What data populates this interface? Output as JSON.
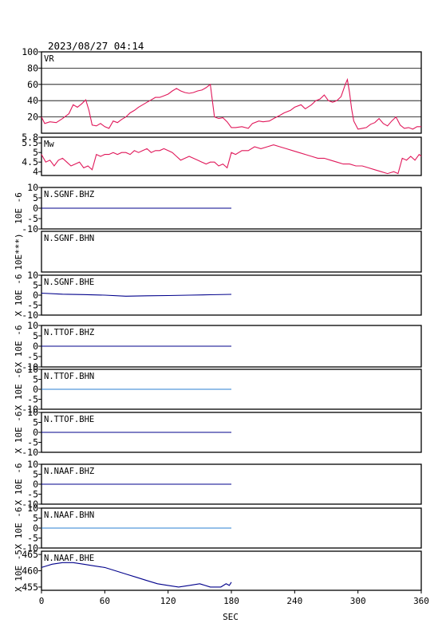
{
  "header": {
    "timestamp": "2023/08/27 04:14"
  },
  "chart_data": {
    "type": "line",
    "xlabel": "SEC",
    "xlim": [
      0,
      360
    ],
    "xticks": [
      0,
      60,
      120,
      180,
      240,
      300,
      360
    ],
    "panels": [
      {
        "id": "vr",
        "label": "VR",
        "ylabel": "",
        "ylim": [
          0,
          100
        ],
        "yticks": [
          20,
          40,
          60,
          80,
          100
        ],
        "ygrid": true,
        "color": "#e0185a",
        "series": [
          {
            "x": [
              0,
              3,
              8,
              14,
              20,
              26,
              30,
              34,
              38,
              42,
              45,
              48,
              52,
              56,
              60,
              64,
              68,
              72,
              76,
              80,
              84,
              88,
              92,
              96,
              100,
              104,
              108,
              112,
              116,
              120,
              124,
              128,
              132,
              136,
              140,
              144,
              148,
              152,
              156,
              160,
              164,
              168,
              172,
              176,
              180,
              184,
              190,
              196,
              200,
              206,
              210,
              216,
              220,
              226,
              230,
              236,
              240,
              246,
              250,
              256,
              260,
              264,
              268,
              272,
              276,
              280,
              284,
              288,
              290,
              292,
              294,
              296,
              300,
              304,
              308,
              312,
              316,
              320,
              324,
              328,
              332,
              336,
              340,
              344,
              348,
              352,
              356,
              360
            ],
            "y": [
              20,
              12,
              14,
              13,
              18,
              24,
              35,
              32,
              36,
              41,
              28,
              10,
              9,
              12,
              8,
              6,
              15,
              13,
              17,
              20,
              25,
              28,
              32,
              35,
              38,
              41,
              44,
              44,
              46,
              48,
              52,
              55,
              52,
              50,
              49,
              50,
              52,
              53,
              56,
              60,
              20,
              18,
              19,
              14,
              7,
              7,
              8,
              6,
              12,
              15,
              14,
              15,
              18,
              22,
              25,
              28,
              32,
              35,
              30,
              35,
              40,
              42,
              47,
              40,
              38,
              40,
              45,
              60,
              66,
              50,
              30,
              15,
              5,
              6,
              7,
              11,
              13,
              18,
              12,
              9,
              15,
              20,
              10,
              6,
              7,
              5,
              8,
              8
            ]
          }
        ]
      },
      {
        "id": "mw",
        "label": "Mw",
        "ylabel": "",
        "ylim": [
          3.8,
          5.8
        ],
        "yticks": [
          4.0,
          4.5,
          5.0,
          5.5,
          5.8
        ],
        "ygrid": false,
        "color": "#e0185a",
        "series": [
          {
            "x": [
              0,
              4,
              8,
              12,
              16,
              20,
              24,
              28,
              32,
              36,
              40,
              44,
              48,
              52,
              56,
              60,
              64,
              68,
              72,
              76,
              80,
              84,
              88,
              92,
              96,
              100,
              104,
              108,
              112,
              116,
              120,
              124,
              128,
              132,
              136,
              140,
              144,
              148,
              152,
              156,
              160,
              164,
              168,
              172,
              176,
              180,
              184,
              190,
              196,
              202,
              208,
              214,
              220,
              226,
              232,
              238,
              244,
              250,
              256,
              262,
              268,
              274,
              280,
              286,
              292,
              298,
              304,
              310,
              316,
              322,
              328,
              334,
              338,
              342,
              346,
              350,
              354,
              358,
              360
            ],
            "y": [
              4.9,
              4.5,
              4.6,
              4.3,
              4.6,
              4.7,
              4.5,
              4.3,
              4.4,
              4.5,
              4.2,
              4.3,
              4.1,
              4.9,
              4.8,
              4.9,
              4.9,
              5.0,
              4.9,
              5.0,
              5.0,
              4.9,
              5.1,
              5.0,
              5.1,
              5.2,
              5.0,
              5.1,
              5.1,
              5.2,
              5.1,
              5.0,
              4.8,
              4.6,
              4.7,
              4.8,
              4.7,
              4.6,
              4.5,
              4.4,
              4.5,
              4.5,
              4.3,
              4.4,
              4.2,
              5.0,
              4.9,
              5.1,
              5.1,
              5.3,
              5.2,
              5.3,
              5.4,
              5.3,
              5.2,
              5.1,
              5.0,
              4.9,
              4.8,
              4.7,
              4.7,
              4.6,
              4.5,
              4.4,
              4.4,
              4.3,
              4.3,
              4.2,
              4.1,
              4.0,
              3.9,
              4.0,
              3.9,
              4.7,
              4.6,
              4.8,
              4.6,
              4.9,
              4.8
            ]
          }
        ]
      },
      {
        "id": "sgnf-bhz",
        "label": "N.SGNF.BHZ",
        "ylabel": "10E -6",
        "ylim": [
          -10,
          10
        ],
        "yticks": [
          -10,
          -5,
          0,
          5,
          10
        ],
        "ygrid": false,
        "color": "#00008b",
        "series": [
          {
            "x": [
              0,
              30,
              60,
              90,
              120,
              150,
              180
            ],
            "y": [
              0,
              0,
              0,
              0,
              0,
              0,
              0
            ]
          }
        ]
      },
      {
        "id": "sgnf-bhn",
        "label": "N.SGNF.BHN",
        "ylabel": "10E***)",
        "ylim": null,
        "yticks": [],
        "ygrid": false,
        "color": "#00008b",
        "series": []
      },
      {
        "id": "sgnf-bhe",
        "label": "N.SGNF.BHE",
        "ylabel": "X 10E -6",
        "ylim": [
          -10,
          10
        ],
        "yticks": [
          -10,
          -5,
          0,
          5,
          10
        ],
        "ygrid": false,
        "color": "#00008b",
        "series": [
          {
            "x": [
              0,
              20,
              40,
              60,
              80,
              100,
              120,
              140,
              160,
              180
            ],
            "y": [
              1,
              0.5,
              0.3,
              0,
              -0.5,
              -0.3,
              -0.2,
              0,
              0.2,
              0.4
            ]
          }
        ]
      },
      {
        "id": "ttof-bhz",
        "label": "N.TTOF.BHZ",
        "ylabel": "X 10E -6",
        "ylim": [
          -10,
          10
        ],
        "yticks": [
          -10,
          -5,
          0,
          5,
          10
        ],
        "ygrid": false,
        "color": "#00008b",
        "series": [
          {
            "x": [
              0,
              30,
              60,
              90,
              120,
              150,
              180
            ],
            "y": [
              0,
              0,
              0,
              0,
              0,
              0,
              0
            ]
          }
        ]
      },
      {
        "id": "ttof-bhn",
        "label": "N.TTOF.BHN",
        "ylabel": "X 10E -6",
        "ylim": [
          -10,
          10
        ],
        "yticks": [
          -10,
          -5,
          0,
          5,
          10
        ],
        "ygrid": false,
        "color": "#2a7fd0",
        "series": [
          {
            "x": [
              0,
              180
            ],
            "y": [
              0,
              0
            ]
          }
        ]
      },
      {
        "id": "ttof-bhe",
        "label": "N.TTOF.BHE",
        "ylabel": "X 10E -6",
        "ylim": [
          -10,
          10
        ],
        "yticks": [
          -10,
          -5,
          0,
          5,
          10
        ],
        "ygrid": false,
        "color": "#00008b",
        "series": [
          {
            "x": [
              0,
              30,
              60,
              90,
              120,
              150,
              180
            ],
            "y": [
              0,
              0,
              0,
              0,
              0,
              0,
              0
            ]
          }
        ]
      },
      {
        "id": "naaf-bhz",
        "label": "N.NAAF.BHZ",
        "ylabel": "X 10E -6",
        "ylim": [
          -10,
          10
        ],
        "yticks": [
          -10,
          -5,
          0,
          5,
          10
        ],
        "ygrid": false,
        "color": "#00008b",
        "series": [
          {
            "x": [
              0,
              30,
              60,
              90,
              120,
              150,
              180
            ],
            "y": [
              0,
              0,
              0,
              0,
              0,
              0,
              0
            ]
          }
        ]
      },
      {
        "id": "naaf-bhn",
        "label": "N.NAAF.BHN",
        "ylabel": "X 10E -6",
        "ylim": [
          -10,
          10
        ],
        "yticks": [
          -10,
          -5,
          0,
          5,
          10
        ],
        "ygrid": false,
        "color": "#2a7fd0",
        "series": [
          {
            "x": [
              0,
              30,
              60,
              90,
              120,
              150,
              180
            ],
            "y": [
              0,
              0,
              0,
              0,
              0,
              0,
              0
            ]
          }
        ]
      },
      {
        "id": "naaf-bhe",
        "label": "N.NAAF.BHE",
        "ylabel": "X 10E -5",
        "ylim": [
          454,
          466
        ],
        "yticks": [
          455,
          460,
          465
        ],
        "ygrid": false,
        "color": "#00008b",
        "series": [
          {
            "x": [
              0,
              5,
              10,
              20,
              30,
              40,
              50,
              60,
              70,
              80,
              90,
              100,
              110,
              120,
              130,
              140,
              150,
              160,
              170,
              175,
              178,
              180
            ],
            "y": [
              461,
              461.5,
              462,
              462.5,
              462.5,
              462,
              461.5,
              461,
              460,
              459,
              458,
              457,
              456,
              455.5,
              455,
              455.5,
              456,
              455,
              455,
              456,
              455.5,
              456.5
            ]
          }
        ]
      }
    ]
  }
}
